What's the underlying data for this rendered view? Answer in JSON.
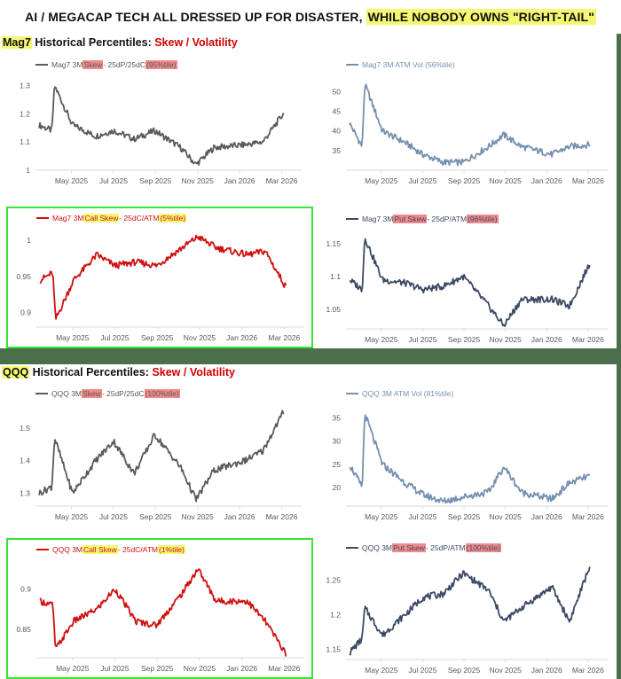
{
  "title": {
    "prefix": "AI / MEGACAP TECH ALL DRESSED UP FOR DISASTER, ",
    "highlight": "WHILE NOBODY OWNS \"RIGHT-TAIL\""
  },
  "sections": [
    {
      "ticker": "Mag7",
      "label": " Historical Percentiles: ",
      "emph": "Skew / Volatility"
    },
    {
      "ticker": "QQQ",
      "label": " Historical Percentiles: ",
      "emph": "Skew / Volatility"
    }
  ],
  "x_ticks": [
    "May 2025",
    "Jul 2025",
    "Sep 2025",
    "Nov 2025",
    "Jan 2026",
    "Mar 2026"
  ],
  "colors": {
    "skew": "#5a5a5a",
    "atm_vol": "#7590b0",
    "call_skew": "#d01010",
    "put_skew": "#3c4a64",
    "highlight_box": "#33e633",
    "green_frame": "#4a6f4a",
    "pink_hl": "#f08a8a",
    "yellow_hl": "#f5f772"
  },
  "legends": {
    "mag7_skew": {
      "pre": "Mag7 3M ",
      "hl1": "Skew",
      "mid": " - 25dP/25dC ",
      "hl2": "(95%tile)"
    },
    "mag7_vol": {
      "pre": "Mag7 3M ATM Vol (56%tile)"
    },
    "mag7_call": {
      "pre": "Mag7 3M ",
      "hl1": "Call Skew",
      "mid": " - 25dC/ATM ",
      "hl2": "(5%tile)"
    },
    "mag7_put": {
      "pre": "Mag7 3M ",
      "hl1": "Put Skew",
      "mid": " - 25dP/ATM ",
      "hl2": "(96%tile)"
    },
    "qqq_skew": {
      "pre": "QQQ 3M ",
      "hl1": "Skew",
      "mid": " - 25dP/25dC ",
      "hl2": "(100%tile)"
    },
    "qqq_vol": {
      "pre": "QQQ 3M ATM Vol (81%tile)"
    },
    "qqq_call": {
      "pre": "QQQ 3M ",
      "hl1": "Call Skew",
      "mid": " - 25dC/ATM ",
      "hl2": "(1%tile)"
    },
    "qqq_put": {
      "pre": "QQQ 3M ",
      "hl1": "Put Skew",
      "mid": " - 25dP/ATM ",
      "hl2": "(100%tile)"
    }
  },
  "chart_data": [
    {
      "type": "line",
      "title": "Mag7 3M Skew - 25dP/25dC (95%tile)",
      "x": [
        "Mar 2025",
        "Apr 2025",
        "Apr 2025",
        "May 2025",
        "Jun 2025",
        "Jul 2025",
        "Aug 2025",
        "Sep 2025",
        "Oct 2025",
        "Nov 2025",
        "Dec 2025",
        "Jan 2026",
        "Feb 2026",
        "Mar 2026"
      ],
      "values": [
        1.16,
        1.14,
        1.3,
        1.16,
        1.12,
        1.14,
        1.11,
        1.14,
        1.08,
        1.02,
        1.08,
        1.09,
        1.1,
        1.2
      ],
      "yticks": [
        1,
        1.1,
        1.2,
        1.3
      ],
      "ylim": [
        1.0,
        1.32
      ],
      "xlabel": "",
      "ylabel": ""
    },
    {
      "type": "line",
      "title": "Mag7 3M ATM Vol (56%tile)",
      "x": [
        "Mar 2025",
        "Apr 2025",
        "Apr 2025",
        "May 2025",
        "Jun 2025",
        "Jul 2025",
        "Aug 2025",
        "Sep 2025",
        "Oct 2025",
        "Nov 2025",
        "Dec 2025",
        "Jan 2026",
        "Feb 2026",
        "Mar 2026"
      ],
      "values": [
        42,
        36,
        52,
        40,
        37,
        34,
        32,
        32,
        36,
        39,
        36,
        34,
        36,
        36.5
      ],
      "yticks": [
        35,
        40,
        45,
        50
      ],
      "ylim": [
        30,
        53
      ],
      "xlabel": "",
      "ylabel": ""
    },
    {
      "type": "line",
      "title": "Mag7 3M Call Skew - 25dC/ATM (5%tile)",
      "x": [
        "Mar 2025",
        "Apr 2025",
        "Apr 2025",
        "May 2025",
        "Jun 2025",
        "Jul 2025",
        "Aug 2025",
        "Sep 2025",
        "Oct 2025",
        "Nov 2025",
        "Dec 2025",
        "Jan 2026",
        "Feb 2026",
        "Mar 2026"
      ],
      "values": [
        0.945,
        0.955,
        0.89,
        0.945,
        0.98,
        0.965,
        0.97,
        0.965,
        0.99,
        1.005,
        0.99,
        0.98,
        0.985,
        0.935
      ],
      "yticks": [
        0.9,
        0.95,
        1
      ],
      "ylim": [
        0.88,
        1.01
      ],
      "xlabel": "",
      "ylabel": ""
    },
    {
      "type": "line",
      "title": "Mag7 3M Put Skew - 25dP/ATM (96%tile)",
      "x": [
        "Mar 2025",
        "Apr 2025",
        "Apr 2025",
        "May 2025",
        "Jun 2025",
        "Jul 2025",
        "Aug 2025",
        "Sep 2025",
        "Oct 2025",
        "Nov 2025",
        "Dec 2025",
        "Jan 2026",
        "Feb 2026",
        "Mar 2026"
      ],
      "values": [
        1.095,
        1.08,
        1.16,
        1.095,
        1.09,
        1.08,
        1.085,
        1.1,
        1.055,
        1.025,
        1.065,
        1.065,
        1.055,
        1.12
      ],
      "yticks": [
        1.05,
        1.1,
        1.15
      ],
      "ylim": [
        1.02,
        1.165
      ],
      "xlabel": "",
      "ylabel": ""
    },
    {
      "type": "line",
      "title": "QQQ 3M Skew - 25dP/25dC (100%tile)",
      "x": [
        "Mar 2025",
        "Apr 2025",
        "Apr 2025",
        "May 2025",
        "Jun 2025",
        "Jul 2025",
        "Aug 2025",
        "Sep 2025",
        "Oct 2025",
        "Nov 2025",
        "Dec 2025",
        "Jan 2026",
        "Feb 2026",
        "Mar 2026"
      ],
      "values": [
        1.3,
        1.32,
        1.47,
        1.3,
        1.4,
        1.46,
        1.36,
        1.48,
        1.38,
        1.28,
        1.37,
        1.4,
        1.43,
        1.55
      ],
      "yticks": [
        1.3,
        1.4,
        1.5
      ],
      "ylim": [
        1.26,
        1.56
      ],
      "xlabel": "",
      "ylabel": ""
    },
    {
      "type": "line",
      "title": "QQQ 3M ATM Vol (81%tile)",
      "x": [
        "Mar 2025",
        "Apr 2025",
        "Apr 2025",
        "May 2025",
        "Jun 2025",
        "Jul 2025",
        "Aug 2025",
        "Sep 2025",
        "Oct 2025",
        "Nov 2025",
        "Dec 2025",
        "Jan 2026",
        "Feb 2026",
        "Mar 2026"
      ],
      "values": [
        25,
        20,
        36,
        25,
        21,
        18.5,
        17,
        18,
        19,
        24.5,
        19,
        17.5,
        21,
        22.5
      ],
      "yticks": [
        20,
        25,
        30,
        35
      ],
      "ylim": [
        16,
        37
      ],
      "xlabel": "",
      "ylabel": ""
    },
    {
      "type": "line",
      "title": "QQQ 3M Call Skew - 25dC/ATM (1%tile)",
      "x": [
        "Mar 2025",
        "Apr 2025",
        "Apr 2025",
        "May 2025",
        "Jun 2025",
        "Jul 2025",
        "Aug 2025",
        "Sep 2025",
        "Oct 2025",
        "Nov 2025",
        "Dec 2025",
        "Jan 2026",
        "Feb 2026",
        "Mar 2026"
      ],
      "values": [
        0.885,
        0.88,
        0.825,
        0.86,
        0.875,
        0.9,
        0.86,
        0.855,
        0.895,
        0.925,
        0.885,
        0.885,
        0.86,
        0.82
      ],
      "yticks": [
        0.85,
        0.9
      ],
      "ylim": [
        0.815,
        0.93
      ],
      "xlabel": "",
      "ylabel": ""
    },
    {
      "type": "line",
      "title": "QQQ 3M Put Skew - 25dP/ATM (100%tile)",
      "x": [
        "Mar 2025",
        "Apr 2025",
        "Apr 2025",
        "May 2025",
        "Jun 2025",
        "Jul 2025",
        "Aug 2025",
        "Sep 2025",
        "Oct 2025",
        "Nov 2025",
        "Dec 2025",
        "Jan 2026",
        "Feb 2026",
        "Mar 2026"
      ],
      "values": [
        1.145,
        1.165,
        1.21,
        1.17,
        1.2,
        1.225,
        1.23,
        1.26,
        1.235,
        1.19,
        1.21,
        1.24,
        1.19,
        1.27
      ],
      "yticks": [
        1.15,
        1.2,
        1.25
      ],
      "ylim": [
        1.135,
        1.275
      ],
      "xlabel": "",
      "ylabel": ""
    }
  ]
}
